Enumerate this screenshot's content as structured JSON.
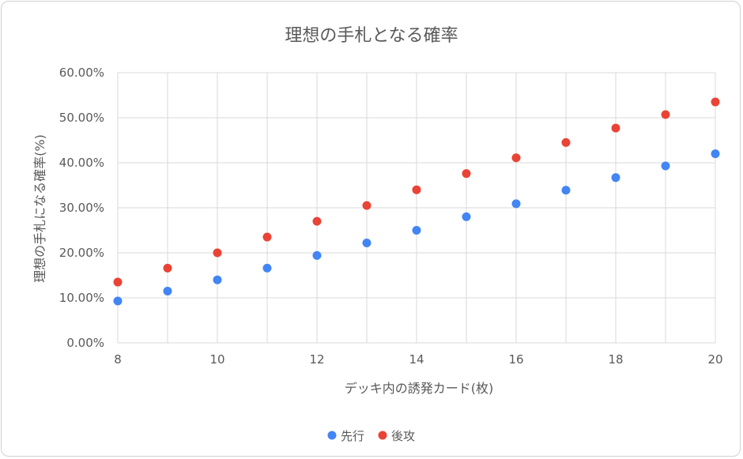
{
  "chart_data": {
    "type": "scatter",
    "title": "理想の手札となる確率",
    "xlabel": "デッキ内の誘発カード(枚)",
    "ylabel": "理想の手札になる確率(%)",
    "xlim": [
      8,
      20
    ],
    "ylim": [
      0,
      0.6
    ],
    "x_ticks": [
      "8",
      "10",
      "12",
      "14",
      "16",
      "18",
      "20"
    ],
    "y_ticks": [
      "0.00%",
      "10.00%",
      "20.00%",
      "30.00%",
      "40.00%",
      "50.00%",
      "60.00%"
    ],
    "grid": true,
    "legend_position": "bottom",
    "x": [
      8,
      9,
      10,
      11,
      12,
      13,
      14,
      15,
      16,
      17,
      18,
      19,
      20
    ],
    "series": [
      {
        "name": "先行",
        "color": "#4285f4",
        "values": [
          0.093,
          0.115,
          0.14,
          0.166,
          0.194,
          0.222,
          0.25,
          0.28,
          0.309,
          0.339,
          0.367,
          0.393,
          0.42
        ]
      },
      {
        "name": "後攻",
        "color": "#ea4335",
        "values": [
          0.135,
          0.166,
          0.2,
          0.235,
          0.27,
          0.305,
          0.34,
          0.376,
          0.411,
          0.445,
          0.477,
          0.507,
          0.535
        ]
      }
    ]
  }
}
